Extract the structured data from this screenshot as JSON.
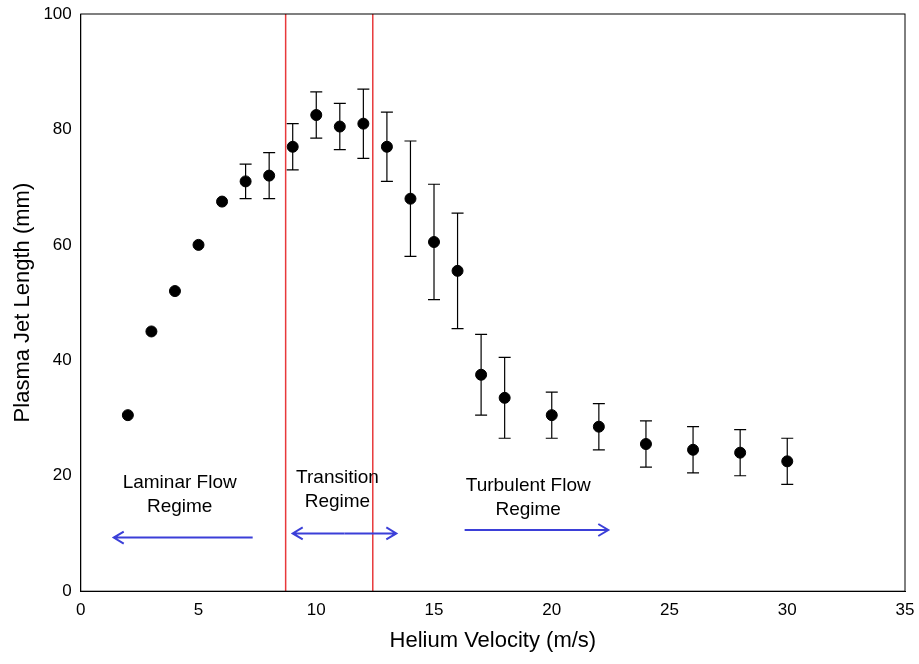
{
  "chart_data": {
    "type": "scatter",
    "x_label": "Helium Velocity (m/s)",
    "y_label": "Plasma Jet Length (mm)",
    "x": [
      2,
      3,
      4,
      5,
      6,
      7,
      8,
      9,
      10,
      11,
      12,
      13,
      14,
      15,
      16,
      17,
      18,
      20,
      22,
      24,
      26,
      28,
      30
    ],
    "values": [
      30.5,
      45,
      52,
      60,
      67.5,
      71,
      72,
      77,
      82.5,
      80.5,
      81,
      77,
      68,
      60.5,
      55.5,
      37.5,
      33.5,
      30.5,
      28.5,
      25.5,
      24.5,
      24,
      22.5
    ],
    "errors": [
      null,
      null,
      null,
      null,
      null,
      3,
      4,
      4,
      4,
      4,
      6,
      6,
      10,
      10,
      10,
      7,
      7,
      4,
      4,
      4,
      4,
      4,
      4
    ],
    "color": "#000000",
    "marker": "circle",
    "xlim": [
      0,
      35
    ],
    "xticks": [
      0,
      5,
      10,
      15,
      20,
      25,
      30,
      35
    ],
    "ylim": [
      0,
      100
    ],
    "yticks": [
      0,
      20,
      40,
      60,
      80,
      100
    ],
    "grid": false,
    "regime_boundaries": [
      8.7,
      12.4
    ],
    "regime_boundary_color": "#e8393b",
    "annotations": [
      {
        "text": "Laminar Flow Regime",
        "x": 4.2,
        "y": 16.7,
        "arrow": {
          "y": 9.3,
          "from": 7.3,
          "to": [
            1.4
          ]
        }
      },
      {
        "text": "Transition Regime",
        "x": 10.9,
        "y": 17.6,
        "arrow": {
          "y": 10,
          "from": 11.2,
          "to": [
            9,
            13.4
          ]
        }
      },
      {
        "text": "Turbulent Flow Regime",
        "x": 19,
        "y": 16.2,
        "arrow": {
          "y": 10.6,
          "from": 16.3,
          "to": [
            22.4
          ]
        }
      }
    ],
    "arrow_color": "#3b3fd8"
  }
}
